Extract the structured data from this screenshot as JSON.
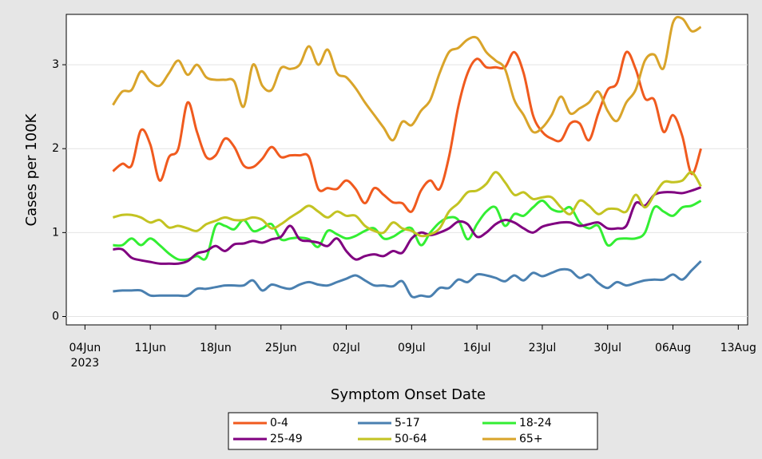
{
  "chart_data": {
    "type": "line",
    "x_label": "Symptom Onset Date",
    "y_label": "Cases per 100K",
    "x_year_label": "2023",
    "x": [
      "2023-06-07",
      "2023-06-08",
      "2023-06-09",
      "2023-06-10",
      "2023-06-11",
      "2023-06-12",
      "2023-06-13",
      "2023-06-14",
      "2023-06-15",
      "2023-06-16",
      "2023-06-17",
      "2023-06-18",
      "2023-06-19",
      "2023-06-20",
      "2023-06-21",
      "2023-06-22",
      "2023-06-23",
      "2023-06-24",
      "2023-06-25",
      "2023-06-26",
      "2023-06-27",
      "2023-06-28",
      "2023-06-29",
      "2023-06-30",
      "2023-07-01",
      "2023-07-02",
      "2023-07-03",
      "2023-07-04",
      "2023-07-05",
      "2023-07-06",
      "2023-07-07",
      "2023-07-08",
      "2023-07-09",
      "2023-07-10",
      "2023-07-11",
      "2023-07-12",
      "2023-07-13",
      "2023-07-14",
      "2023-07-15",
      "2023-07-16",
      "2023-07-17",
      "2023-07-18",
      "2023-07-19",
      "2023-07-20",
      "2023-07-21",
      "2023-07-22",
      "2023-07-23",
      "2023-07-24",
      "2023-07-25",
      "2023-07-26",
      "2023-07-27",
      "2023-07-28",
      "2023-07-29",
      "2023-07-30",
      "2023-07-31",
      "2023-08-01",
      "2023-08-02",
      "2023-08-03",
      "2023-08-04",
      "2023-08-05",
      "2023-08-06",
      "2023-08-07",
      "2023-08-08",
      "2023-08-09"
    ],
    "series": [
      {
        "name": "0-4",
        "color": "#f05a1e",
        "values": [
          1.73,
          1.82,
          1.8,
          2.22,
          2.05,
          1.62,
          1.9,
          2.0,
          2.55,
          2.2,
          1.9,
          1.92,
          2.12,
          2.02,
          1.8,
          1.78,
          1.88,
          2.02,
          1.9,
          1.92,
          1.92,
          1.9,
          1.52,
          1.53,
          1.52,
          1.62,
          1.52,
          1.35,
          1.53,
          1.45,
          1.36,
          1.35,
          1.25,
          1.5,
          1.62,
          1.52,
          1.9,
          2.5,
          2.9,
          3.07,
          2.97,
          2.97,
          2.97,
          3.15,
          2.9,
          2.4,
          2.2,
          2.12,
          2.1,
          2.3,
          2.3,
          2.1,
          2.42,
          2.7,
          2.78,
          3.15,
          2.95,
          2.6,
          2.58,
          2.2,
          2.4,
          2.15,
          1.7,
          2.0
        ]
      },
      {
        "name": "5-17",
        "color": "#4a80b0",
        "values": [
          0.3,
          0.31,
          0.31,
          0.31,
          0.25,
          0.25,
          0.25,
          0.25,
          0.25,
          0.33,
          0.33,
          0.35,
          0.37,
          0.37,
          0.37,
          0.43,
          0.31,
          0.38,
          0.35,
          0.33,
          0.38,
          0.41,
          0.38,
          0.37,
          0.41,
          0.45,
          0.49,
          0.43,
          0.37,
          0.37,
          0.36,
          0.42,
          0.24,
          0.25,
          0.24,
          0.34,
          0.34,
          0.44,
          0.41,
          0.5,
          0.49,
          0.46,
          0.42,
          0.49,
          0.43,
          0.52,
          0.48,
          0.52,
          0.56,
          0.55,
          0.46,
          0.5,
          0.4,
          0.34,
          0.41,
          0.37,
          0.4,
          0.43,
          0.44,
          0.44,
          0.5,
          0.44,
          0.55,
          0.66
        ]
      },
      {
        "name": "18-24",
        "color": "#33ee33",
        "values": [
          0.85,
          0.85,
          0.93,
          0.85,
          0.93,
          0.85,
          0.75,
          0.68,
          0.68,
          0.72,
          0.7,
          1.08,
          1.08,
          1.04,
          1.15,
          1.02,
          1.05,
          1.1,
          0.92,
          0.93,
          0.94,
          0.92,
          0.83,
          1.02,
          0.98,
          0.93,
          0.96,
          1.02,
          1.05,
          0.93,
          0.95,
          1.02,
          1.05,
          0.85,
          1.0,
          1.12,
          1.18,
          1.15,
          0.92,
          1.1,
          1.25,
          1.3,
          1.08,
          1.22,
          1.2,
          1.3,
          1.38,
          1.28,
          1.25,
          1.3,
          1.12,
          1.05,
          1.08,
          0.85,
          0.92,
          0.93,
          0.93,
          1.0,
          1.3,
          1.25,
          1.2,
          1.3,
          1.32,
          1.38
        ]
      },
      {
        "name": "25-49",
        "color": "#800080",
        "values": [
          0.8,
          0.8,
          0.7,
          0.67,
          0.65,
          0.63,
          0.63,
          0.63,
          0.66,
          0.75,
          0.78,
          0.84,
          0.78,
          0.86,
          0.87,
          0.9,
          0.88,
          0.92,
          0.95,
          1.08,
          0.92,
          0.9,
          0.88,
          0.84,
          0.93,
          0.78,
          0.68,
          0.72,
          0.74,
          0.72,
          0.78,
          0.76,
          0.93,
          1.0,
          0.97,
          1.0,
          1.05,
          1.13,
          1.1,
          0.95,
          1.0,
          1.1,
          1.15,
          1.12,
          1.05,
          1.0,
          1.07,
          1.1,
          1.12,
          1.12,
          1.08,
          1.1,
          1.12,
          1.05,
          1.05,
          1.08,
          1.35,
          1.32,
          1.45,
          1.48,
          1.48,
          1.47,
          1.5,
          1.54
        ]
      },
      {
        "name": "50-64",
        "color": "#c3c322",
        "values": [
          1.18,
          1.21,
          1.21,
          1.18,
          1.12,
          1.15,
          1.06,
          1.08,
          1.05,
          1.02,
          1.1,
          1.14,
          1.18,
          1.15,
          1.15,
          1.18,
          1.15,
          1.05,
          1.1,
          1.18,
          1.25,
          1.32,
          1.25,
          1.18,
          1.25,
          1.2,
          1.2,
          1.08,
          1.02,
          1.0,
          1.12,
          1.05,
          1.02,
          0.96,
          0.98,
          1.05,
          1.25,
          1.35,
          1.48,
          1.5,
          1.58,
          1.72,
          1.6,
          1.45,
          1.48,
          1.4,
          1.42,
          1.42,
          1.3,
          1.22,
          1.38,
          1.32,
          1.22,
          1.28,
          1.28,
          1.25,
          1.45,
          1.3,
          1.45,
          1.6,
          1.6,
          1.62,
          1.72,
          1.55
        ]
      },
      {
        "name": "65+",
        "color": "#d9a42a",
        "values": [
          2.52,
          2.68,
          2.7,
          2.92,
          2.8,
          2.75,
          2.9,
          3.05,
          2.88,
          3.0,
          2.85,
          2.82,
          2.82,
          2.8,
          2.5,
          3.0,
          2.75,
          2.7,
          2.96,
          2.95,
          3.0,
          3.22,
          3.0,
          3.18,
          2.9,
          2.85,
          2.72,
          2.55,
          2.4,
          2.25,
          2.1,
          2.32,
          2.28,
          2.45,
          2.58,
          2.9,
          3.15,
          3.2,
          3.3,
          3.32,
          3.15,
          3.05,
          2.95,
          2.58,
          2.4,
          2.2,
          2.25,
          2.4,
          2.62,
          2.42,
          2.48,
          2.55,
          2.68,
          2.45,
          2.33,
          2.55,
          2.7,
          3.05,
          3.12,
          2.96,
          3.5,
          3.55,
          3.4,
          3.45
        ]
      }
    ],
    "xlim": [
      "2023-06-02",
      "2023-08-14"
    ],
    "xticks": [
      {
        "value": "2023-06-04",
        "label": "04Jun"
      },
      {
        "value": "2023-06-11",
        "label": "11Jun"
      },
      {
        "value": "2023-06-18",
        "label": "18Jun"
      },
      {
        "value": "2023-06-25",
        "label": "25Jun"
      },
      {
        "value": "2023-07-02",
        "label": "02Jul"
      },
      {
        "value": "2023-07-09",
        "label": "09Jul"
      },
      {
        "value": "2023-07-16",
        "label": "16Jul"
      },
      {
        "value": "2023-07-23",
        "label": "23Jul"
      },
      {
        "value": "2023-07-30",
        "label": "30Jul"
      },
      {
        "value": "2023-08-06",
        "label": "06Aug"
      },
      {
        "value": "2023-08-13",
        "label": "13Aug"
      }
    ],
    "ylim": [
      -0.1,
      3.6
    ],
    "yticks": [
      0,
      1,
      2,
      3
    ],
    "grid": true,
    "legend": "bottom"
  }
}
